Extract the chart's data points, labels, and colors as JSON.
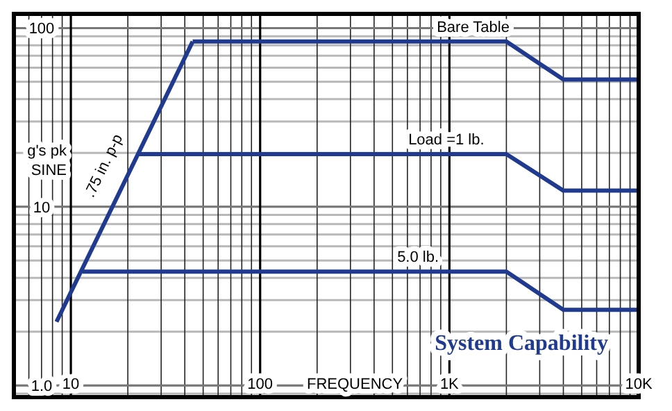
{
  "chart_data": {
    "type": "line",
    "title": "System Capability",
    "xlabel": "FREQUENCY",
    "ylabel": "g's pk SINE",
    "log": "xy",
    "grid": true,
    "line_style": "solid",
    "xlim": [
      5,
      10000
    ],
    "xticks": [
      10,
      100,
      {
        "value": 1000,
        "label": "1K"
      },
      {
        "value": 10000,
        "label": "10K"
      }
    ],
    "ylim": [
      0.86,
      120
    ],
    "yticks": [
      {
        "value": 1,
        "label": "1.0"
      },
      10,
      100
    ],
    "series": [
      {
        "name": ".75 in. p-p",
        "color": "#1f3a8f",
        "x": [
          8.4,
          44
        ],
        "values": [
          2.27,
          84
        ]
      },
      {
        "name": "Bare Table",
        "color": "#1f3a8f",
        "x": [
          44,
          2000,
          4000,
          10000
        ],
        "values": [
          84,
          84,
          51.5,
          51.5
        ]
      },
      {
        "name": "Load =1 lb.",
        "color": "#1f3a8f",
        "x": [
          22.9,
          2000,
          4000,
          10000
        ],
        "values": [
          19.7,
          19.7,
          12.3,
          12.3
        ]
      },
      {
        "name": "5.0 lb.",
        "color": "#1f3a8f",
        "x": [
          11.5,
          2000,
          4000,
          10000
        ],
        "values": [
          4.33,
          4.33,
          2.65,
          2.65
        ]
      }
    ]
  }
}
